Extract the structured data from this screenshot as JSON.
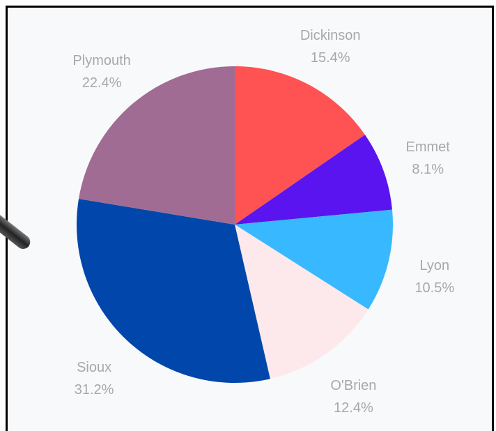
{
  "chart_data": {
    "type": "pie",
    "start_angle_deg": 0,
    "direction": "clockwise",
    "slices": [
      {
        "label": "Dickinson",
        "value": 15.4,
        "display": "15.4%",
        "color": "#ff5252"
      },
      {
        "label": "Emmet",
        "value": 8.1,
        "display": "8.1%",
        "color": "#5a14f0"
      },
      {
        "label": "Lyon",
        "value": 10.5,
        "display": "10.5%",
        "color": "#38b9ff"
      },
      {
        "label": "O'Brien",
        "value": 12.4,
        "display": "12.4%",
        "color": "#fde9ec"
      },
      {
        "label": "Sioux",
        "value": 31.2,
        "display": "31.2%",
        "color": "#0147ab"
      },
      {
        "label": "Plymouth",
        "value": 22.4,
        "display": "22.4%",
        "color": "#a06c94"
      }
    ]
  }
}
